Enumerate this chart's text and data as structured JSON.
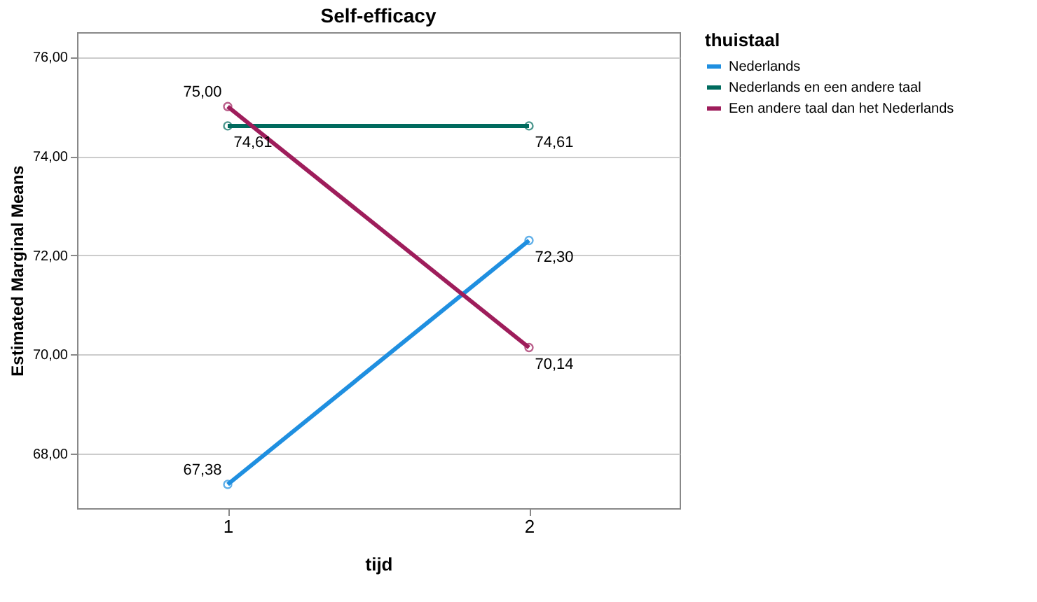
{
  "chart_data": {
    "type": "line",
    "title": "Self-efficacy",
    "xlabel": "tijd",
    "ylabel": "Estimated Marginal Means",
    "legend_title": "thuistaal",
    "categories": [
      "1",
      "2"
    ],
    "series": [
      {
        "name": "Nederlands",
        "color": "#1f8fe0",
        "values": [
          67.38,
          72.3
        ],
        "value_labels": [
          "67,38",
          "72,30"
        ]
      },
      {
        "name": "Nederlands en een andere taal",
        "color": "#006b5e",
        "values": [
          74.61,
          74.61
        ],
        "value_labels": [
          "74,61",
          "74,61"
        ]
      },
      {
        "name": "Een andere taal dan het Nederlands",
        "color": "#9e1d5b",
        "values": [
          75.0,
          70.14
        ],
        "value_labels": [
          "75,00",
          "70,14"
        ]
      }
    ],
    "ylim": [
      66.9,
      76.5
    ],
    "yticks": [
      {
        "value": 68,
        "label": "68,00"
      },
      {
        "value": 70,
        "label": "70,00"
      },
      {
        "value": 72,
        "label": "72,00"
      },
      {
        "value": 74,
        "label": "74,00"
      },
      {
        "value": 76,
        "label": "76,00"
      }
    ],
    "grid": "y",
    "legend": "top right",
    "marker": "circle",
    "line_style": "solid"
  }
}
